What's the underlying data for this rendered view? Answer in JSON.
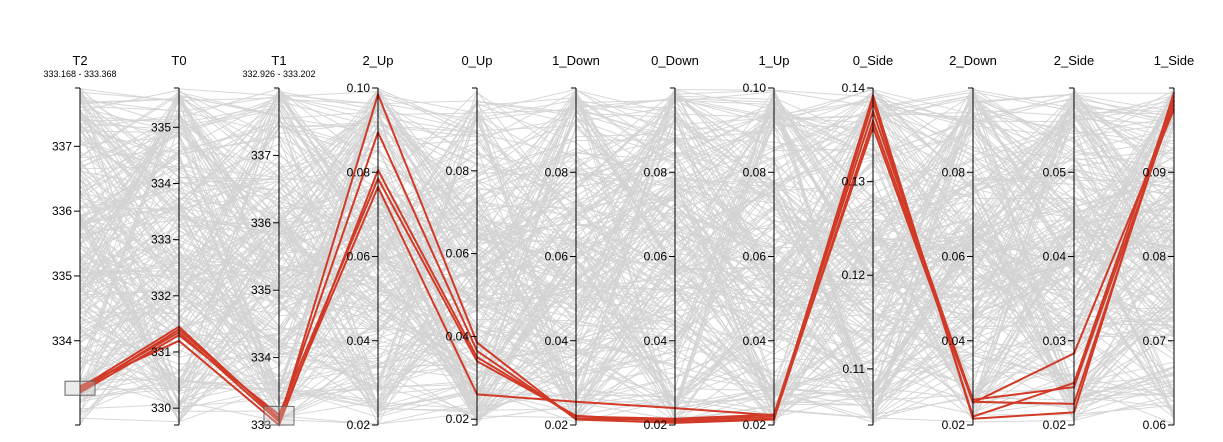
{
  "colors": {
    "highlight": "#d13a26",
    "context": "#d3d3d3",
    "axis": "#000000"
  },
  "chart_data": {
    "type": "parallel-coordinates",
    "axes": [
      {
        "name": "T2",
        "domain": [
          332.7,
          337.9
        ],
        "ticks": [
          334,
          335,
          336,
          337
        ],
        "tick_labels": [
          "334",
          "335",
          "336",
          "337"
        ],
        "brush": "333.168 - 333.368"
      },
      {
        "name": "T0",
        "domain": [
          329.7,
          335.7
        ],
        "ticks": [
          330,
          331,
          332,
          333,
          334,
          335
        ],
        "tick_labels": [
          "330",
          "331",
          "332",
          "333",
          "334",
          "335"
        ]
      },
      {
        "name": "T1",
        "domain": [
          333.0,
          338.0
        ],
        "ticks": [
          333,
          334,
          335,
          336,
          337
        ],
        "tick_labels": [
          "333",
          "334",
          "335",
          "336",
          "337"
        ],
        "brush": "332.926 - 333.202"
      },
      {
        "name": "2_Up",
        "domain": [
          0.02,
          0.1
        ],
        "ticks": [
          0.02,
          0.04,
          0.06,
          0.08,
          0.1
        ],
        "tick_labels": [
          "0.02",
          "0.04",
          "0.06",
          "0.08",
          "0.10"
        ]
      },
      {
        "name": "0_Up",
        "domain": [
          0.0186,
          0.1
        ],
        "ticks": [
          0.02,
          0.04,
          0.06,
          0.08
        ],
        "tick_labels": [
          "0.02",
          "0.04",
          "0.06",
          "0.08"
        ]
      },
      {
        "name": "1_Down",
        "domain": [
          0.02,
          0.1
        ],
        "ticks": [
          0.02,
          0.04,
          0.06,
          0.08
        ],
        "tick_labels": [
          "0.02",
          "0.04",
          "0.06",
          "0.08"
        ]
      },
      {
        "name": "0_Down",
        "domain": [
          0.02,
          0.1
        ],
        "ticks": [
          0.02,
          0.04,
          0.06,
          0.08
        ],
        "tick_labels": [
          "0.02",
          "0.04",
          "0.06",
          "0.08"
        ]
      },
      {
        "name": "1_Up",
        "domain": [
          0.02,
          0.1
        ],
        "ticks": [
          0.02,
          0.04,
          0.06,
          0.08,
          0.1
        ],
        "tick_labels": [
          "0.02",
          "0.04",
          "0.06",
          "0.08",
          "0.10"
        ]
      },
      {
        "name": "0_Side",
        "domain": [
          0.104,
          0.14
        ],
        "ticks": [
          0.11,
          0.12,
          0.13,
          0.14
        ],
        "tick_labels": [
          "0.11",
          "0.12",
          "0.13",
          "0.14"
        ]
      },
      {
        "name": "2_Down",
        "domain": [
          0.02,
          0.1
        ],
        "ticks": [
          0.02,
          0.04,
          0.06,
          0.08
        ],
        "tick_labels": [
          "0.02",
          "0.04",
          "0.06",
          "0.08"
        ]
      },
      {
        "name": "2_Side",
        "domain": [
          0.02,
          0.06
        ],
        "ticks": [
          0.02,
          0.03,
          0.04,
          0.05
        ],
        "tick_labels": [
          "0.02",
          "0.03",
          "0.04",
          "0.05"
        ]
      },
      {
        "name": "1_Side",
        "domain": [
          0.06,
          0.1
        ],
        "ticks": [
          0.06,
          0.07,
          0.08,
          0.09
        ],
        "tick_labels": [
          "0.06",
          "0.07",
          "0.08",
          "0.09"
        ]
      }
    ],
    "highlighted": [
      [
        333.25,
        331.35,
        333.05,
        0.0985,
        0.0385,
        0.0213,
        0.0205,
        0.0213,
        0.1392,
        0.0215,
        0.0215,
        0.0995
      ],
      [
        333.22,
        331.4,
        333.1,
        0.0895,
        0.0365,
        0.0215,
        0.0212,
        0.022,
        0.1385,
        0.022,
        0.025,
        0.099
      ],
      [
        333.3,
        331.2,
        333.0,
        0.0805,
        0.035,
        0.022,
        0.0215,
        0.0225,
        0.1375,
        0.0255,
        0.0225,
        0.0985
      ],
      [
        333.2,
        331.3,
        333.15,
        0.0785,
        0.034,
        0.0222,
        0.0208,
        0.0215,
        0.1365,
        0.026,
        0.0245,
        0.098
      ],
      [
        333.27,
        331.45,
        333.08,
        0.0765,
        0.026,
        0.0255,
        0.024,
        0.0223,
        0.1358,
        0.0253,
        0.0285,
        0.0975
      ]
    ]
  }
}
